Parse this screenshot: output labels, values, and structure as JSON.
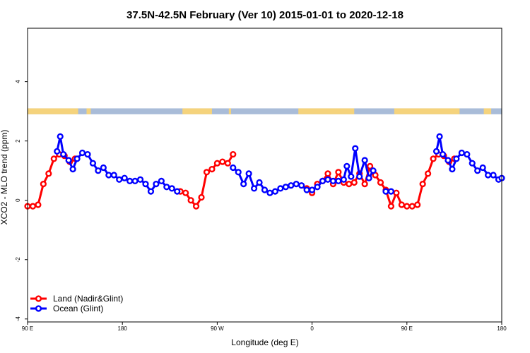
{
  "chart_data": {
    "type": "line",
    "title": "37.5N-42.5N February (Ver 10)   2015-01-01 to 2020-12-18",
    "xlabel": "Longitude (deg E)",
    "ylabel": "XCO2 - MLO trend (ppm)",
    "xlim": [
      90,
      540
    ],
    "ylim": [
      -4.1,
      5.8
    ],
    "x_ticks": [
      {
        "x": 90,
        "label": "90 E"
      },
      {
        "x": 180,
        "label": "180"
      },
      {
        "x": 270,
        "label": "90 W"
      },
      {
        "x": 360,
        "label": "0"
      },
      {
        "x": 450,
        "label": "90 E"
      },
      {
        "x": 540,
        "label": "180"
      }
    ],
    "y_ticks": [
      {
        "y": -4,
        "label": "-4"
      },
      {
        "y": -2,
        "label": "-2"
      },
      {
        "y": 0,
        "label": "0"
      },
      {
        "y": 2,
        "label": "2"
      },
      {
        "y": 4,
        "label": "4"
      }
    ],
    "land_ocean_strip": {
      "y_range": [
        2.9,
        3.1
      ],
      "ocean_color": "#a9bcd8",
      "land_color": "#f5d37c",
      "land_spans": [
        [
          90,
          138
        ],
        [
          146,
          150
        ],
        [
          237,
          265
        ],
        [
          282,
          283
        ],
        [
          281,
          283
        ],
        [
          347,
          400
        ],
        [
          438,
          500
        ],
        [
          523,
          530
        ],
        [
          88,
          90
        ]
      ]
    },
    "legend": {
      "position": "bottom-left",
      "entries": [
        {
          "label": "Land (Nadir&Glint)",
          "color": "#ff0000"
        },
        {
          "label": "Ocean (Glint)",
          "color": "#0000ff"
        }
      ]
    },
    "series": [
      {
        "name": "Land (Nadir&Glint)",
        "color": "#ff0000",
        "segments": [
          [
            [
              90,
              -0.2
            ],
            [
              95,
              -0.2
            ],
            [
              100,
              -0.15
            ],
            [
              105,
              0.55
            ],
            [
              110,
              0.9
            ],
            [
              115,
              1.4
            ],
            [
              120,
              1.55
            ],
            [
              125,
              1.5
            ],
            [
              130,
              1.3
            ],
            [
              135,
              1.4
            ]
          ],
          [
            [
              235,
              0.3
            ],
            [
              240,
              0.25
            ],
            [
              245,
              0.0
            ],
            [
              250,
              -0.2
            ],
            [
              255,
              0.1
            ],
            [
              260,
              0.95
            ],
            [
              265,
              1.05
            ],
            [
              270,
              1.25
            ],
            [
              275,
              1.3
            ],
            [
              280,
              1.25
            ],
            [
              285,
              1.55
            ]
          ],
          [
            [
              355,
              0.4
            ],
            [
              360,
              0.25
            ],
            [
              365,
              0.55
            ],
            [
              370,
              0.65
            ],
            [
              375,
              0.9
            ],
            [
              380,
              0.55
            ],
            [
              385,
              0.95
            ],
            [
              390,
              0.6
            ],
            [
              395,
              0.55
            ],
            [
              400,
              0.6
            ],
            [
              405,
              0.9
            ],
            [
              410,
              0.55
            ],
            [
              415,
              1.15
            ],
            [
              420,
              0.85
            ],
            [
              425,
              0.6
            ],
            [
              430,
              0.35
            ],
            [
              435,
              -0.2
            ],
            [
              440,
              0.25
            ],
            [
              445,
              -0.15
            ],
            [
              450,
              -0.2
            ],
            [
              455,
              -0.2
            ],
            [
              460,
              -0.15
            ],
            [
              465,
              0.55
            ],
            [
              470,
              0.9
            ],
            [
              475,
              1.4
            ],
            [
              480,
              1.55
            ],
            [
              485,
              1.5
            ],
            [
              490,
              1.3
            ],
            [
              495,
              1.4
            ]
          ]
        ]
      },
      {
        "name": "Ocean (Glint)",
        "color": "#0000ff",
        "segments": [
          [
            [
              118,
              1.65
            ],
            [
              121,
              2.15
            ],
            [
              124,
              1.55
            ],
            [
              129,
              1.35
            ],
            [
              133,
              1.05
            ],
            [
              137,
              1.4
            ],
            [
              142,
              1.6
            ],
            [
              147,
              1.55
            ],
            [
              152,
              1.25
            ],
            [
              157,
              1.0
            ],
            [
              162,
              1.1
            ],
            [
              167,
              0.85
            ],
            [
              172,
              0.85
            ],
            [
              177,
              0.7
            ],
            [
              182,
              0.75
            ],
            [
              187,
              0.65
            ],
            [
              192,
              0.65
            ],
            [
              197,
              0.7
            ],
            [
              202,
              0.55
            ],
            [
              207,
              0.3
            ],
            [
              212,
              0.55
            ],
            [
              217,
              0.65
            ],
            [
              222,
              0.45
            ],
            [
              227,
              0.4
            ],
            [
              232,
              0.3
            ]
          ],
          [
            [
              285,
              1.1
            ],
            [
              290,
              0.95
            ],
            [
              295,
              0.55
            ],
            [
              300,
              0.9
            ],
            [
              305,
              0.4
            ],
            [
              310,
              0.6
            ],
            [
              315,
              0.35
            ],
            [
              320,
              0.25
            ],
            [
              325,
              0.3
            ],
            [
              330,
              0.4
            ],
            [
              335,
              0.45
            ],
            [
              340,
              0.5
            ],
            [
              345,
              0.55
            ],
            [
              350,
              0.5
            ],
            [
              355,
              0.35
            ],
            [
              360,
              0.35
            ],
            [
              365,
              0.45
            ],
            [
              370,
              0.65
            ],
            [
              375,
              0.7
            ],
            [
              380,
              0.65
            ],
            [
              385,
              0.65
            ],
            [
              390,
              0.7
            ],
            [
              393,
              1.15
            ],
            [
              397,
              0.8
            ],
            [
              401,
              1.75
            ],
            [
              405,
              0.8
            ],
            [
              410,
              1.35
            ],
            [
              414,
              0.75
            ],
            [
              418,
              1.0
            ]
          ],
          [
            [
              430,
              0.3
            ],
            [
              435,
              0.3
            ]
          ],
          [
            [
              478,
              1.65
            ],
            [
              481,
              2.15
            ],
            [
              484,
              1.55
            ],
            [
              489,
              1.35
            ],
            [
              493,
              1.05
            ],
            [
              497,
              1.4
            ],
            [
              502,
              1.6
            ],
            [
              507,
              1.55
            ],
            [
              512,
              1.25
            ],
            [
              517,
              1.0
            ],
            [
              522,
              1.1
            ],
            [
              527,
              0.85
            ],
            [
              532,
              0.85
            ],
            [
              537,
              0.7
            ],
            [
              540,
              0.75
            ]
          ]
        ]
      }
    ]
  }
}
